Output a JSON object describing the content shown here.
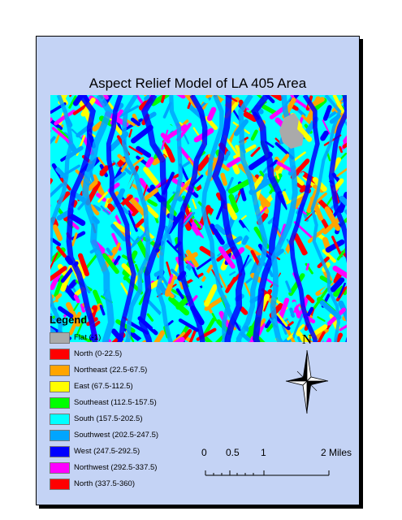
{
  "map": {
    "title": "Aspect Relief Model of LA 405 Area"
  },
  "legend": {
    "title": "Legend",
    "items": [
      {
        "label": "Flat (-1)",
        "color": "#aaaaaa"
      },
      {
        "label": "North (0-22.5)",
        "color": "#ff0000"
      },
      {
        "label": "Northeast (22.5-67.5)",
        "color": "#ffa500"
      },
      {
        "label": "East (67.5-112.5)",
        "color": "#ffff00"
      },
      {
        "label": "Southeast (112.5-157.5)",
        "color": "#00ff00"
      },
      {
        "label": "South (157.5-202.5)",
        "color": "#00ffff"
      },
      {
        "label": "Southwest (202.5-247.5)",
        "color": "#00a5ff"
      },
      {
        "label": "West (247.5-292.5)",
        "color": "#0000ff"
      },
      {
        "label": "Northwest (292.5-337.5)",
        "color": "#ff00ff"
      },
      {
        "label": "North (337.5-360)",
        "color": "#ff0000"
      }
    ]
  },
  "north_arrow": {
    "label": "N"
  },
  "scale_bar": {
    "labels": [
      "0",
      "0.5",
      "1",
      "2 Miles"
    ]
  }
}
